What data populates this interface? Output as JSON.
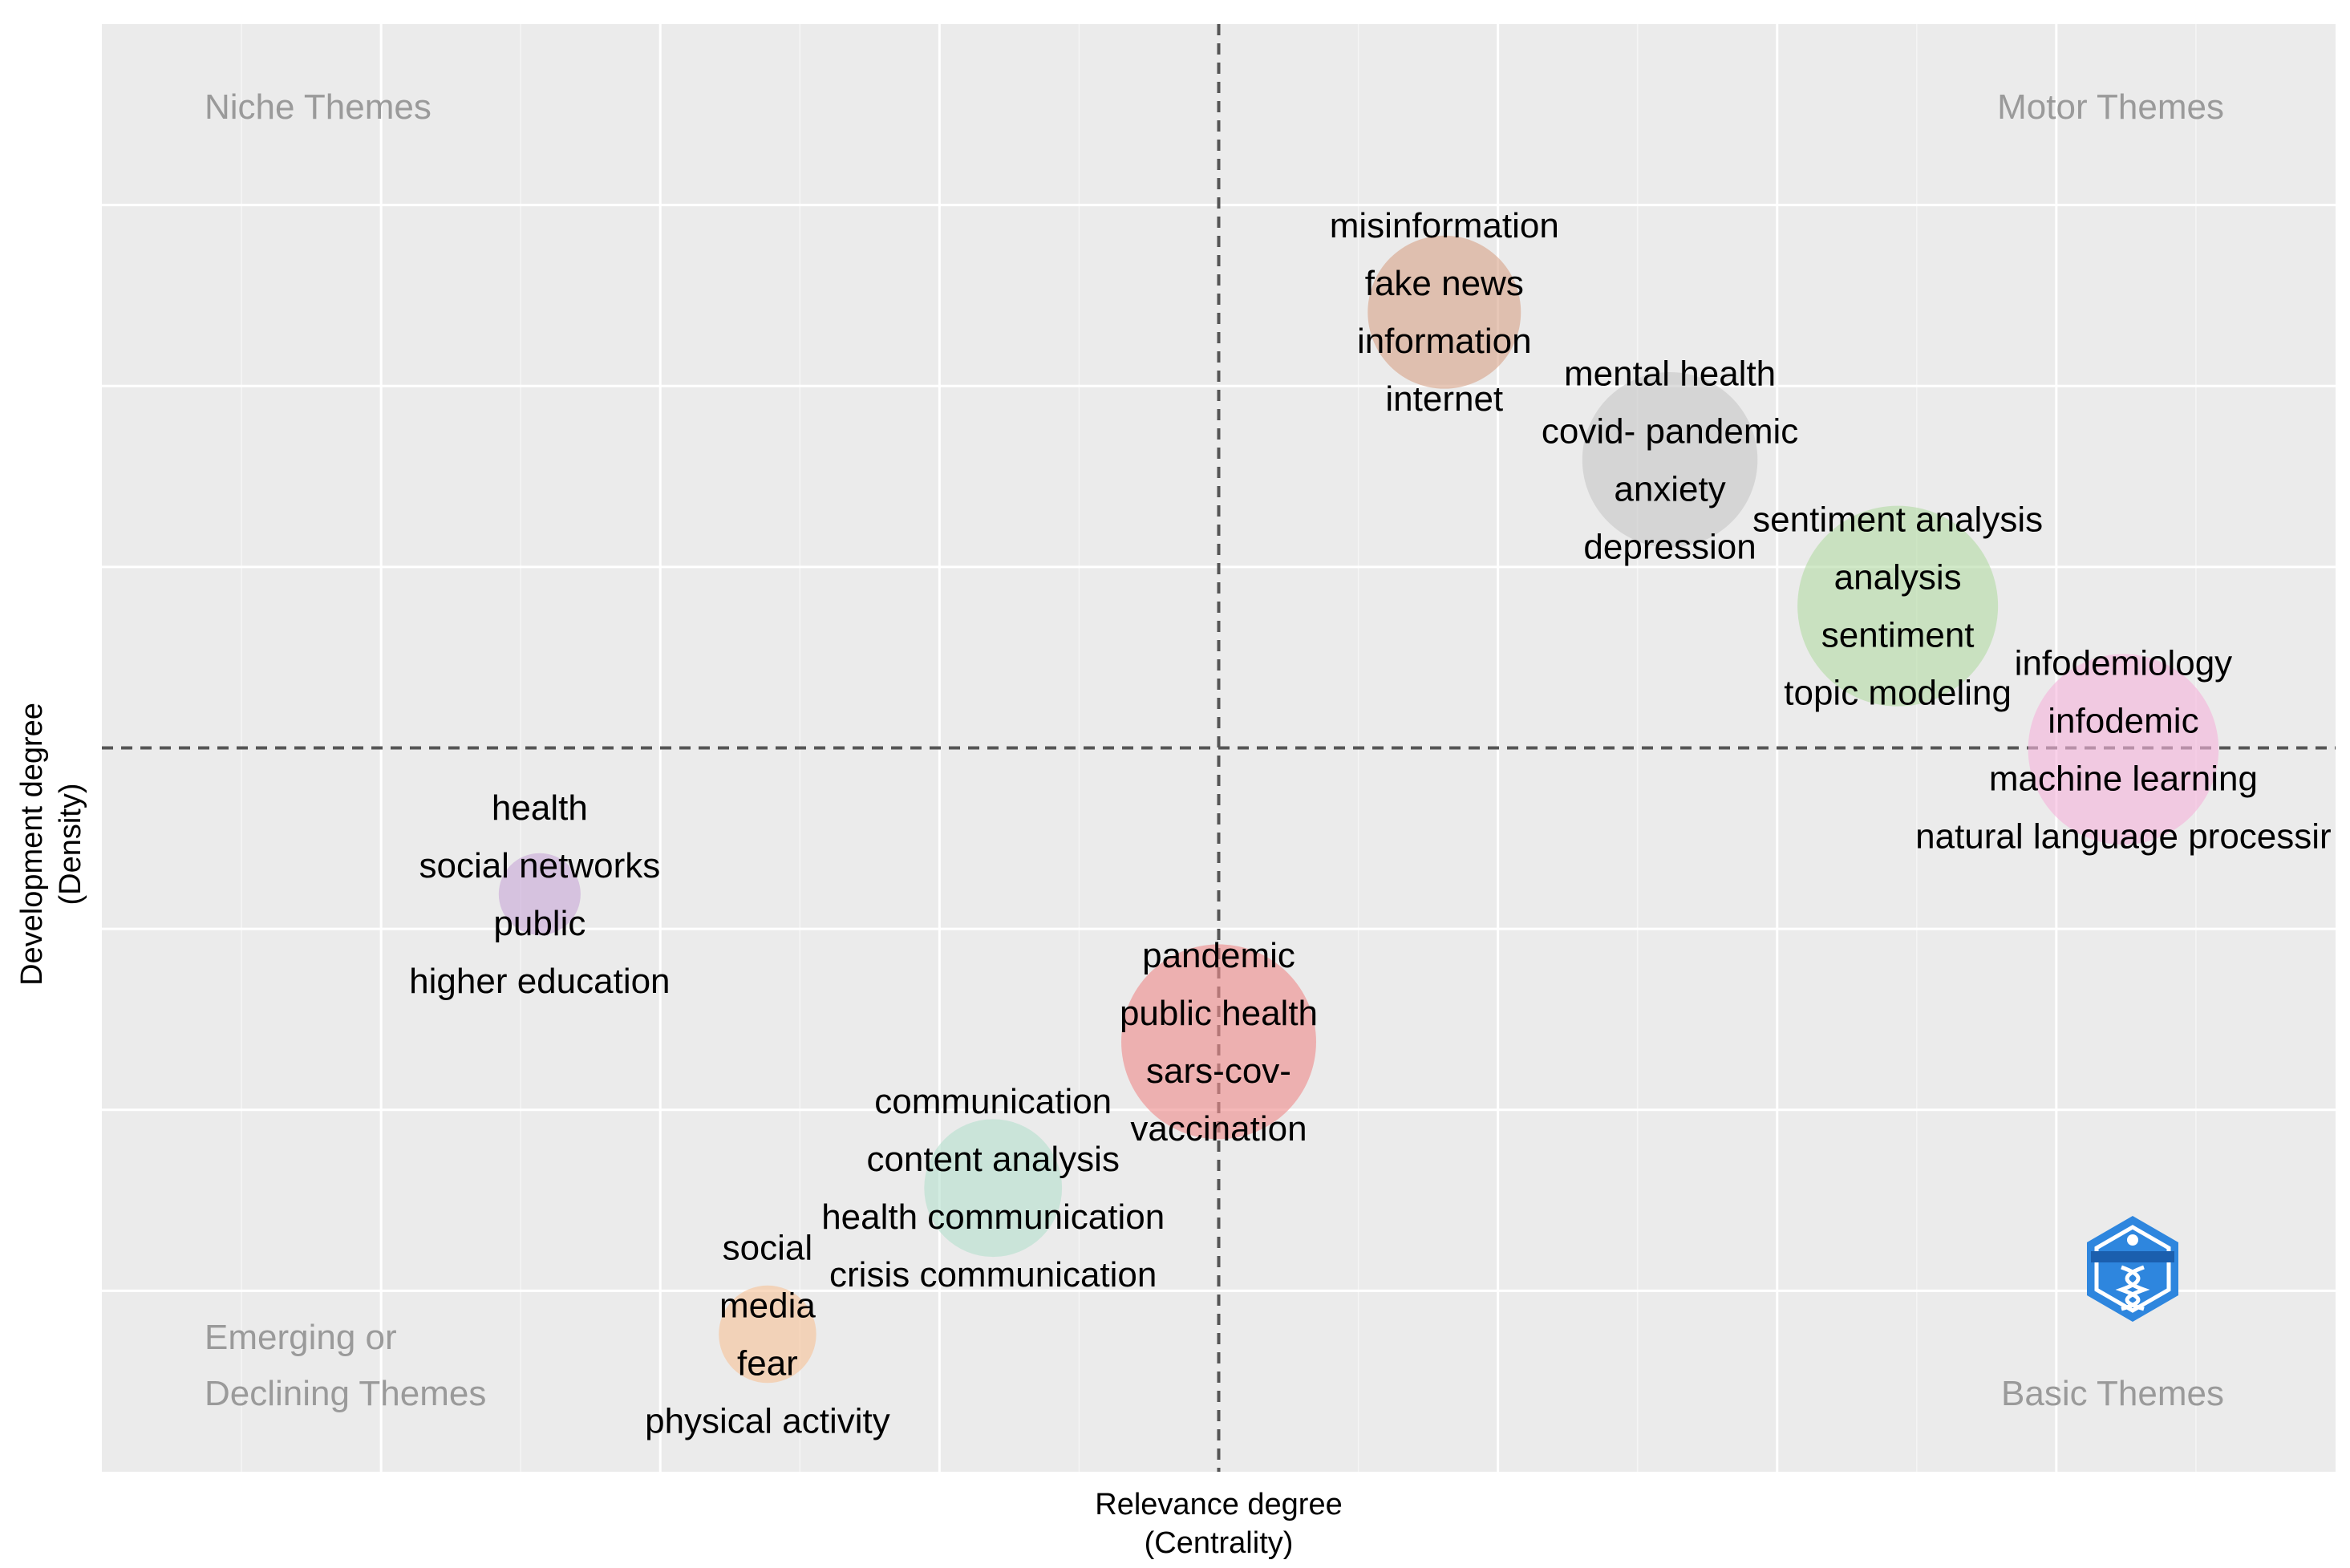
{
  "chart_data": {
    "type": "scatter",
    "title": "",
    "xlabel": [
      "Relevance degree",
      "(Centrality)"
    ],
    "ylabel": [
      "Development degree",
      "(Density)"
    ],
    "xlim": [
      0,
      100
    ],
    "ylim": [
      0,
      100
    ],
    "x_center": 50,
    "y_center": 50,
    "grid": true,
    "quadrants": {
      "top_left": [
        "Niche Themes"
      ],
      "top_right": [
        "Motor Themes"
      ],
      "bottom_left": [
        "Emerging or",
        "Declining Themes"
      ],
      "bottom_right": [
        "Basic Themes"
      ]
    },
    "logo": "bibliometrix-logo",
    "clusters": [
      {
        "name": "misinformation",
        "x": 60.1,
        "y": 80.1,
        "size": 0.42,
        "color": "#d9a58a",
        "keywords": [
          "misinformation",
          "fake news",
          "information",
          "internet"
        ]
      },
      {
        "name": "mental health",
        "x": 70.2,
        "y": 69.9,
        "size": 0.55,
        "color": "#c8c8c8",
        "keywords": [
          "mental health",
          "covid- pandemic",
          "anxiety",
          "depression"
        ]
      },
      {
        "name": "sentiment analysis",
        "x": 80.4,
        "y": 59.8,
        "size": 0.72,
        "color": "#b5dba6",
        "keywords": [
          "sentiment analysis",
          "analysis",
          "sentiment",
          "topic modeling"
        ]
      },
      {
        "name": "infodemiology",
        "x": 90.5,
        "y": 49.9,
        "size": 0.65,
        "color": "#f5b5dc",
        "keywords": [
          "infodemiology",
          "infodemic",
          "machine learning",
          "natural language processir"
        ]
      },
      {
        "name": "health",
        "x": 19.6,
        "y": 39.9,
        "size": 0.12,
        "color": "#c9a9d9",
        "keywords": [
          "health",
          "social networks",
          "public",
          "higher education"
        ]
      },
      {
        "name": "pandemic",
        "x": 50.0,
        "y": 29.7,
        "size": 0.68,
        "color": "#ef8d8d",
        "keywords": [
          "pandemic",
          "public health",
          "sars-cov-",
          "vaccination"
        ]
      },
      {
        "name": "communication",
        "x": 39.9,
        "y": 19.6,
        "size": 0.34,
        "color": "#b7e0cf",
        "keywords": [
          "communication",
          "content analysis",
          "health communication",
          "crisis communication"
        ]
      },
      {
        "name": "social media",
        "x": 29.8,
        "y": 9.5,
        "size": 0.17,
        "color": "#f7c49a",
        "keywords": [
          "social",
          "media",
          "fear",
          "physical activity"
        ]
      }
    ]
  }
}
